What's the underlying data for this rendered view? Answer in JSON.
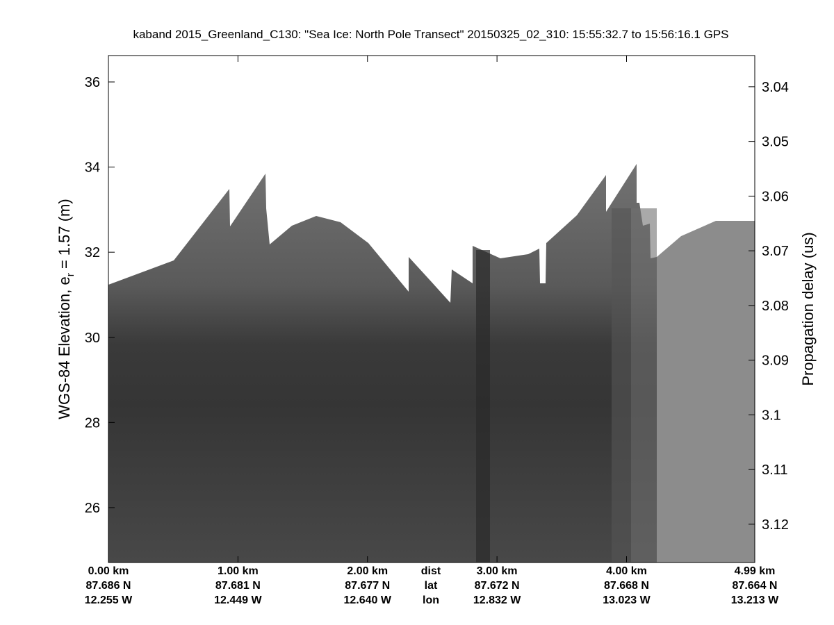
{
  "chart_data": {
    "type": "echogram",
    "title": "kaband 2015_Greenland_C130: \"Sea Ice: North Pole Transect\"  20150325_02_310: 15:55:32.7 to 15:56:16.1 GPS",
    "ylabel": [
      "WGS-84 Elevation, e",
      "r",
      " = 1.57 (m)"
    ],
    "y2label": "Propagation delay (us)",
    "ylim": [
      24.71,
      36.62
    ],
    "yticks": [
      26,
      28,
      30,
      32,
      34,
      36
    ],
    "y2lim": [
      3.127,
      3.0343
    ],
    "y2ticks": [
      3.04,
      3.05,
      3.06,
      3.07,
      3.08,
      3.09,
      3.1,
      3.11,
      3.12
    ],
    "xlim": [
      0,
      4.99
    ],
    "xticks": [
      {
        "value": 0,
        "label": "0.00 km"
      },
      {
        "value": 1,
        "label": "1.00 km"
      },
      {
        "value": 2,
        "label": "2.00 km"
      },
      {
        "value": 3,
        "label": "3.00 km"
      },
      {
        "value": 4,
        "label": "4.00 km"
      },
      {
        "value": 4.99,
        "label": "4.99 km"
      }
    ],
    "xtick_lat": [
      "87.686 N",
      "87.681 N",
      "87.677 N",
      "87.672 N",
      "87.668 N",
      "87.664 N"
    ],
    "xtick_lon": [
      "12.255 W",
      "12.449 W",
      "12.640 W",
      "12.832 W",
      "13.023 W",
      "13.213 W"
    ],
    "xtick_row_labels": [
      "dist",
      "lat",
      "lon"
    ]
  }
}
